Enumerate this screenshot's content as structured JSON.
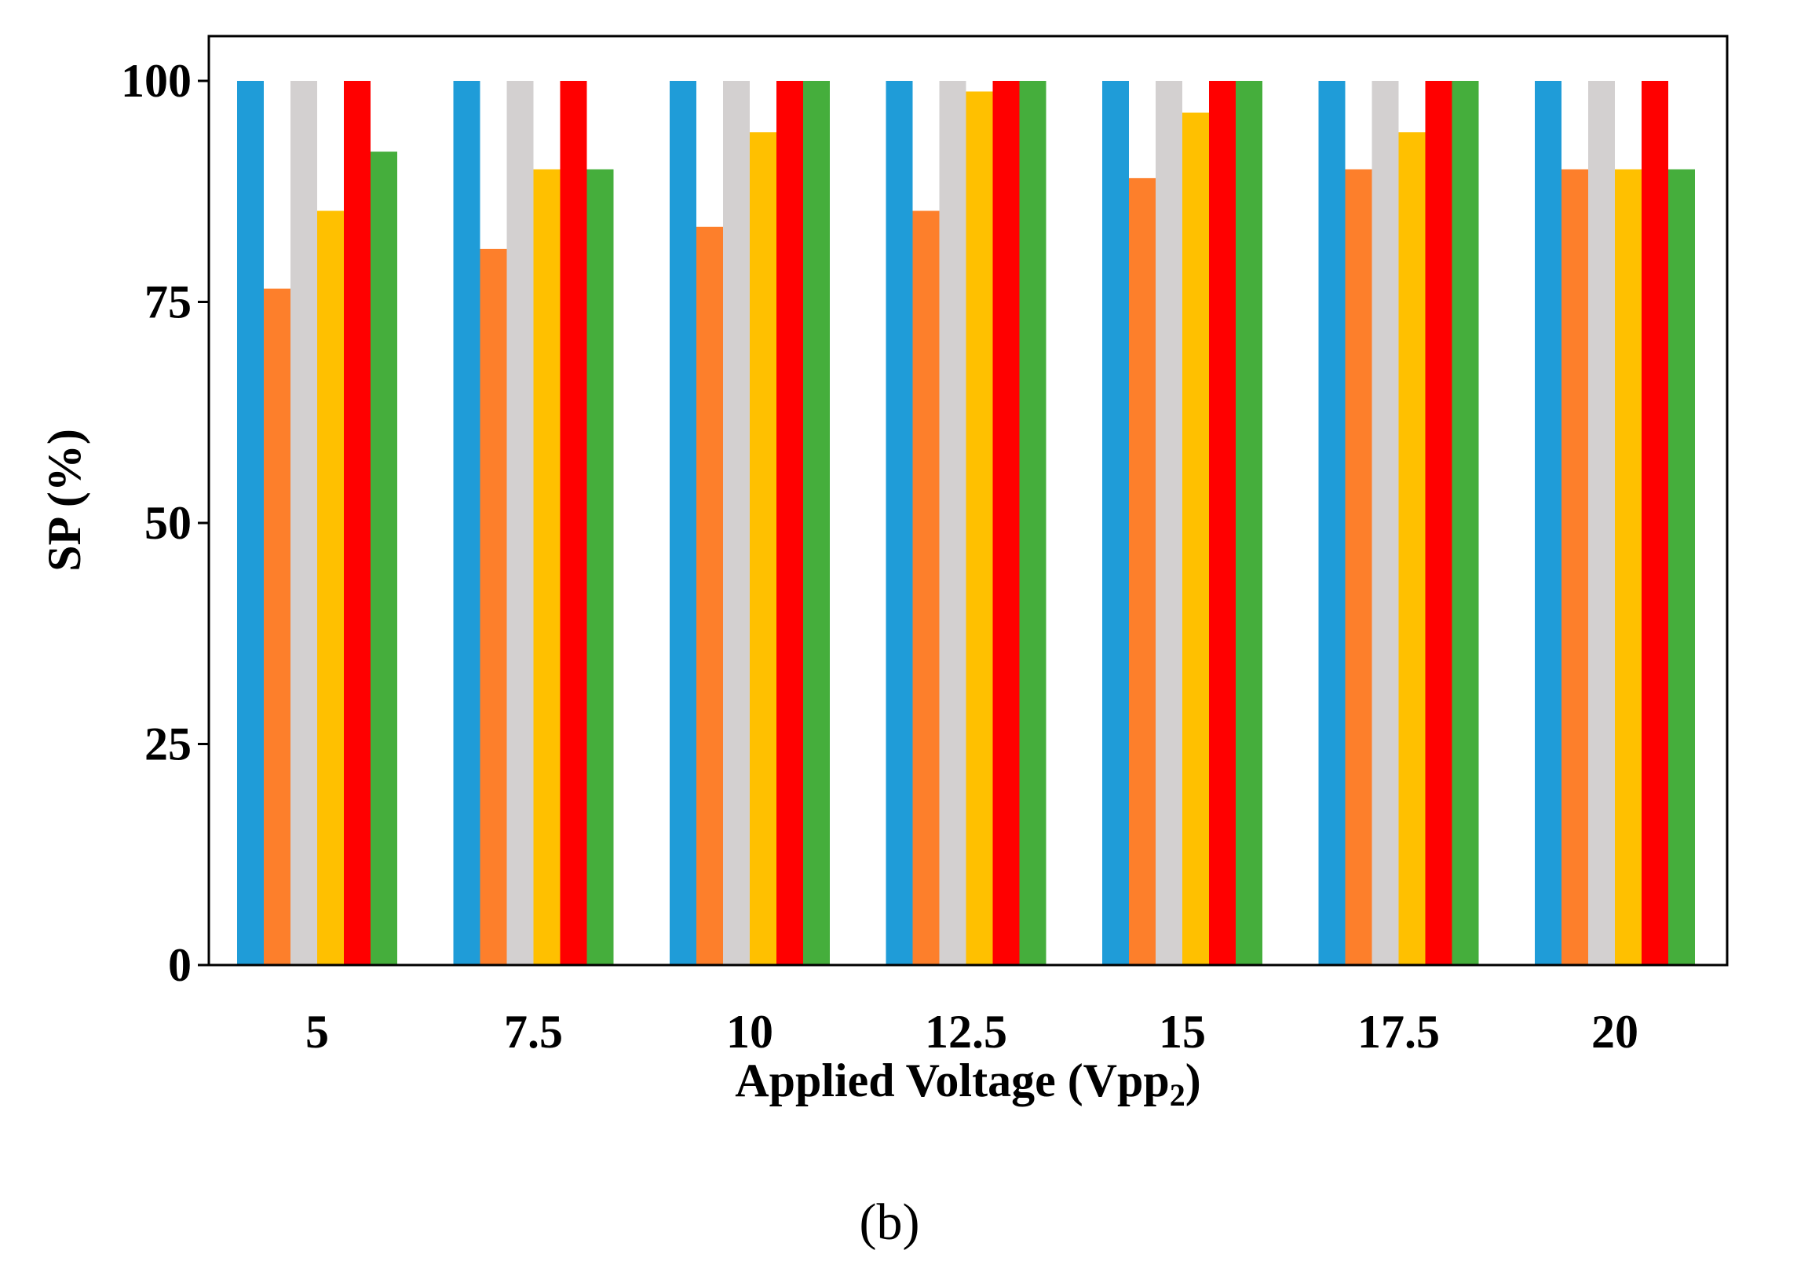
{
  "chart_data": {
    "type": "bar",
    "categories": [
      "5",
      "7.5",
      "10",
      "12.5",
      "15",
      "17.5",
      "20"
    ],
    "series": [
      {
        "color": "#1f9cd8",
        "values": [
          100,
          100,
          100,
          100,
          100,
          100,
          100
        ]
      },
      {
        "color": "#fd7f2b",
        "values": [
          76.5,
          81,
          83.5,
          85.3,
          89,
          90,
          90
        ]
      },
      {
        "color": "#d3d0d0",
        "values": [
          100,
          100,
          100,
          100,
          100,
          100,
          100
        ]
      },
      {
        "color": "#ffc000",
        "values": [
          85.3,
          90,
          94.2,
          98.8,
          96.4,
          94.2,
          90
        ]
      },
      {
        "color": "#ff0000",
        "values": [
          100,
          100,
          100,
          100,
          100,
          100,
          100
        ]
      },
      {
        "color": "#45ae3c",
        "values": [
          92,
          90,
          100,
          100,
          100,
          100,
          90
        ]
      }
    ],
    "yticks": [
      0,
      25,
      50,
      75,
      100
    ],
    "ylim": [
      0,
      105
    ],
    "xlabel": "Applied Voltage  (Vpp",
    "xlabel_subscript": "2",
    "xlabel_suffix": ")",
    "ylabel": "SP (%)",
    "grid": false,
    "legend": "none"
  },
  "caption": "(b)"
}
